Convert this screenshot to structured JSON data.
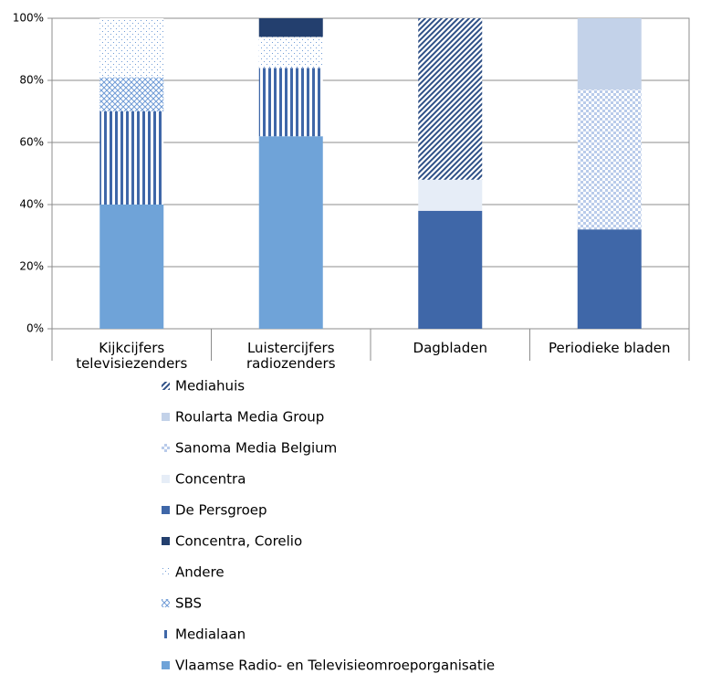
{
  "chart_data": {
    "type": "stacked_bar",
    "categories": [
      "Kijkcijfers televisiezenders",
      "Luistercijfers radiozenders",
      "Dagbladen",
      "Periodieke bladen"
    ],
    "series": [
      {
        "name": "Vlaamse Radio- en Televisieomroeporganisatie",
        "color": "#6fa3d8",
        "pattern": "solid",
        "values": [
          40,
          62,
          0,
          0
        ]
      },
      {
        "name": "Medialaan",
        "color": "#3f67a8",
        "pattern": "vertical",
        "values": [
          30,
          22,
          0,
          0
        ]
      },
      {
        "name": "SBS",
        "color": "#6f9bd6",
        "pattern": "crosshatch",
        "values": [
          11,
          0,
          0,
          0
        ]
      },
      {
        "name": "Andere",
        "color": "#6f9bd6",
        "pattern": "dots",
        "values": [
          19,
          10,
          0,
          0
        ]
      },
      {
        "name": "Concentra, Corelio",
        "color": "#233f6e",
        "pattern": "solid",
        "values": [
          0,
          6,
          0,
          0
        ]
      },
      {
        "name": "De Persgroep",
        "color": "#3f67a8",
        "pattern": "solid",
        "values": [
          0,
          0,
          38,
          32
        ]
      },
      {
        "name": "Concentra",
        "color": "#e6edf7",
        "pattern": "solid",
        "values": [
          0,
          0,
          10,
          0
        ]
      },
      {
        "name": "Sanoma Media Belgium",
        "color": "#b9cbea",
        "pattern": "checker",
        "values": [
          0,
          0,
          0,
          45
        ]
      },
      {
        "name": "Roularta Media Group",
        "color": "#c3d2e9",
        "pattern": "solid",
        "values": [
          0,
          0,
          0,
          23
        ]
      },
      {
        "name": "Mediahuis",
        "color": "#2d4f86",
        "pattern": "diagonal",
        "values": [
          0,
          0,
          52,
          0
        ]
      }
    ],
    "ylim": [
      0,
      100
    ],
    "yticks": [
      {
        "value": 0,
        "label": "0%"
      },
      {
        "value": 20,
        "label": "20%"
      },
      {
        "value": 40,
        "label": "40%"
      },
      {
        "value": 60,
        "label": "60%"
      },
      {
        "value": 80,
        "label": "80%"
      },
      {
        "value": 100,
        "label": "100%"
      }
    ],
    "grid": true
  }
}
